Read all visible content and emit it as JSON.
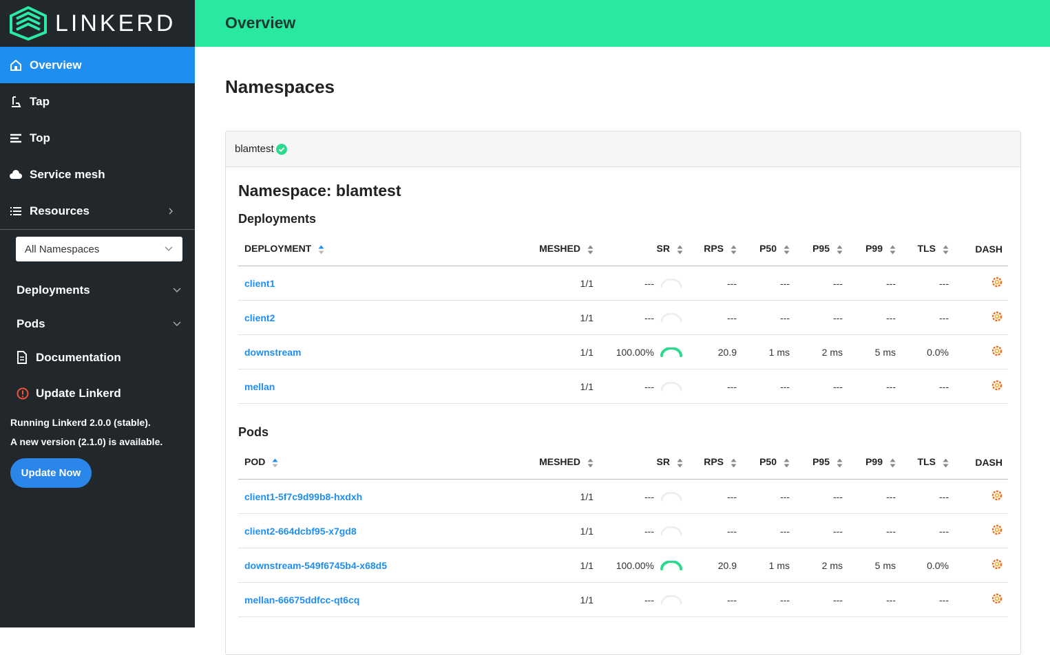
{
  "sidebar": {
    "brand": "LINKERD",
    "nav": [
      "Overview",
      "Tap",
      "Top",
      "Service mesh",
      "Resources"
    ],
    "namespace_select": "All Namespaces",
    "sections": [
      "Deployments",
      "Pods"
    ],
    "documentation": "Documentation",
    "update_title": "Update Linkerd",
    "running": "Running Linkerd 2.0.0 (stable).",
    "available": "A new version (2.1.0) is available.",
    "update_button": "Update Now"
  },
  "header": {
    "title": "Overview"
  },
  "page": {
    "heading": "Namespaces",
    "namespace_tab": "blamtest",
    "namespace_title": "Namespace: blamtest",
    "tables": [
      {
        "title": "Deployments",
        "columns": [
          "DEPLOYMENT",
          "MESHED",
          "SR",
          "RPS",
          "P50",
          "P95",
          "P99",
          "TLS",
          "DASH"
        ],
        "rows": [
          [
            "client1",
            "1/1",
            "---",
            "---",
            "---",
            "---",
            "---",
            "---"
          ],
          [
            "client2",
            "1/1",
            "---",
            "---",
            "---",
            "---",
            "---",
            "---"
          ],
          [
            "downstream",
            "1/1",
            "100.00%",
            "20.9",
            "1 ms",
            "2 ms",
            "5 ms",
            "0.0%"
          ],
          [
            "mellan",
            "1/1",
            "---",
            "---",
            "---",
            "---",
            "---",
            "---"
          ]
        ]
      },
      {
        "title": "Pods",
        "columns": [
          "POD",
          "MESHED",
          "SR",
          "RPS",
          "P50",
          "P95",
          "P99",
          "TLS",
          "DASH"
        ],
        "rows": [
          [
            "client1-5f7c9d99b8-hxdxh",
            "1/1",
            "---",
            "---",
            "---",
            "---",
            "---",
            "---"
          ],
          [
            "client2-664dcbf95-x7gd8",
            "1/1",
            "---",
            "---",
            "---",
            "---",
            "---",
            "---"
          ],
          [
            "downstream-549f6745b4-x68d5",
            "1/1",
            "100.00%",
            "20.9",
            "1 ms",
            "2 ms",
            "5 ms",
            "0.0%"
          ],
          [
            "mellan-66675ddfcc-qt6cq",
            "1/1",
            "---",
            "---",
            "---",
            "---",
            "---",
            "---"
          ]
        ]
      }
    ]
  }
}
